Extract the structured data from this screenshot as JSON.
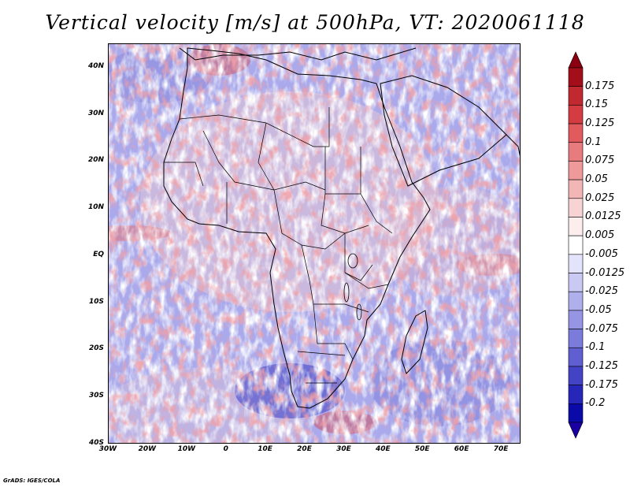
{
  "title": "Vertical velocity [m/s] at 500hPa, VT: 2020061118",
  "map": {
    "y_ticks": [
      "40N",
      "30N",
      "20N",
      "10N",
      "EQ",
      "10S",
      "20S",
      "30S",
      "40S"
    ],
    "x_ticks": [
      "30W",
      "20W",
      "10W",
      "0",
      "10E",
      "20E",
      "30E",
      "40E",
      "50E",
      "60E",
      "70E"
    ],
    "lon_range": [
      -30,
      75
    ],
    "lat_range": [
      -40,
      45
    ]
  },
  "colorbar": {
    "labels": [
      "0.175",
      "0.15",
      "0.125",
      "0.1",
      "0.075",
      "0.05",
      "0.025",
      "0.0125",
      "0.005",
      "-0.005",
      "-0.0125",
      "-0.025",
      "-0.05",
      "-0.075",
      "-0.1",
      "-0.125",
      "-0.175",
      "-0.2"
    ],
    "colors": [
      "#a40e1b",
      "#c0292f",
      "#d43c41",
      "#e05a5e",
      "#e87b7d",
      "#ee9a9b",
      "#f3b6b7",
      "#f8d3d3",
      "#fdeeee",
      "#ffffff",
      "#e3e3fb",
      "#c9c9f4",
      "#afafec",
      "#9595e4",
      "#7b7bdb",
      "#5f5fd2",
      "#4343c6",
      "#2626b8",
      "#0a0aa8"
    ],
    "top_arrow_color": "#8b0010",
    "bottom_arrow_color": "#1a00a0"
  },
  "credit": "GrADS: IGES/COLA"
}
